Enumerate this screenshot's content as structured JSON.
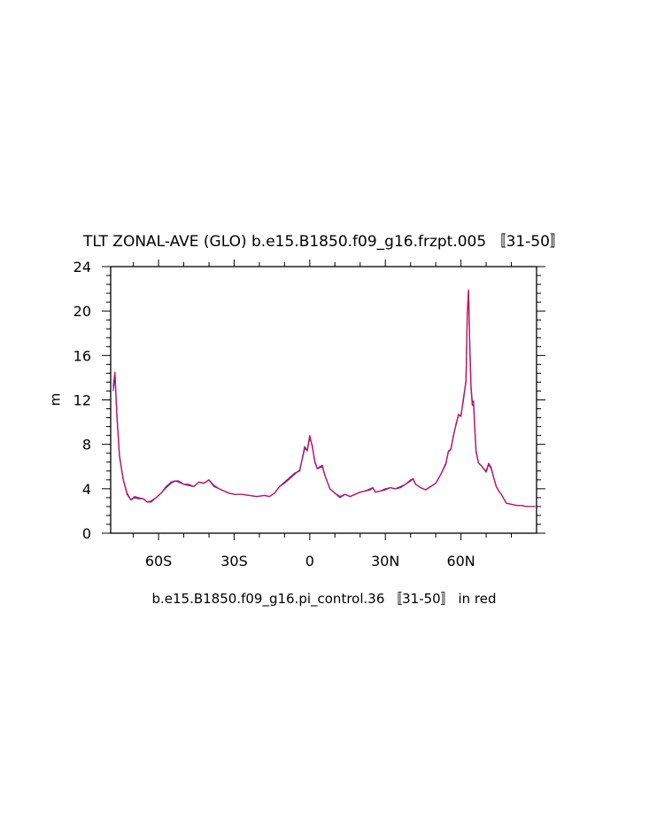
{
  "chart_data": {
    "type": "line",
    "title": "TLT ZONAL-AVE (GLO) b.e15.B1850.f09_g16.frzpt.005 〚31-50〛",
    "subtitle": "b.e15.B1850.f09_g16.pi_control.36 〚31-50〛 in red",
    "xlabel": "",
    "ylabel": "m",
    "xlim": [
      -79,
      90
    ],
    "ylim": [
      0,
      24
    ],
    "x_ticks": [
      {
        "value": -60,
        "label": "60S"
      },
      {
        "value": -30,
        "label": "30S"
      },
      {
        "value": 0,
        "label": "0"
      },
      {
        "value": 30,
        "label": "30N"
      },
      {
        "value": 60,
        "label": "60N"
      }
    ],
    "y_ticks": [
      {
        "value": 0,
        "label": "0"
      },
      {
        "value": 4,
        "label": "4"
      },
      {
        "value": 8,
        "label": "8"
      },
      {
        "value": 12,
        "label": "12"
      },
      {
        "value": 16,
        "label": "16"
      },
      {
        "value": 20,
        "label": "20"
      },
      {
        "value": 24,
        "label": "24"
      }
    ],
    "grid": false,
    "x": [
      -78,
      -77.3,
      -76.5,
      -75.5,
      -74,
      -72.5,
      -71,
      -69.5,
      -68,
      -66,
      -64.5,
      -63,
      -61,
      -59,
      -57,
      -55,
      -53.5,
      -52,
      -50,
      -48,
      -46,
      -44,
      -42,
      -40,
      -38,
      -36,
      -34,
      -32,
      -30,
      -27,
      -24,
      -21,
      -18,
      -16,
      -14,
      -12,
      -10,
      -8,
      -6,
      -4,
      -2,
      -1,
      0,
      1,
      2,
      3,
      4,
      5,
      6,
      7,
      8,
      10,
      12,
      14,
      16,
      18,
      20,
      22,
      24,
      25,
      26,
      28,
      30,
      32,
      34,
      36,
      38,
      40,
      41,
      42,
      44,
      46,
      48,
      50,
      52,
      54,
      55,
      56,
      57,
      58,
      59,
      60,
      61,
      62,
      62.5,
      63,
      63.5,
      64,
      64.5,
      65,
      65.5,
      66,
      67,
      68,
      69,
      70,
      71,
      72,
      73,
      74,
      75,
      76,
      78,
      80,
      82,
      84,
      86,
      88,
      89.5
    ],
    "series": [
      {
        "name": "b.e15.B1850.f09_g16.frzpt.005",
        "color": "#3333cc",
        "values": [
          12.8,
          14.2,
          10.5,
          7.0,
          4.8,
          3.6,
          3.0,
          3.2,
          3.1,
          3.1,
          2.8,
          2.9,
          3.2,
          3.6,
          4.2,
          4.6,
          4.7,
          4.7,
          4.4,
          4.3,
          4.2,
          4.6,
          4.5,
          4.8,
          4.2,
          4.0,
          3.8,
          3.6,
          3.5,
          3.5,
          3.4,
          3.3,
          3.4,
          3.3,
          3.6,
          4.2,
          4.6,
          5.0,
          5.4,
          5.6,
          7.8,
          7.4,
          8.6,
          7.9,
          6.4,
          5.8,
          5.9,
          6.0,
          5.2,
          4.6,
          4.0,
          3.6,
          3.3,
          3.5,
          3.3,
          3.5,
          3.7,
          3.8,
          3.9,
          4.1,
          3.7,
          3.8,
          3.9,
          4.1,
          4.0,
          4.1,
          4.4,
          4.7,
          4.9,
          4.4,
          4.1,
          3.9,
          4.2,
          4.5,
          5.3,
          6.3,
          7.3,
          7.6,
          8.7,
          9.8,
          10.6,
          10.6,
          12.0,
          13.8,
          19.5,
          21.8,
          17.0,
          13.2,
          11.8,
          11.9,
          9.5,
          7.4,
          6.3,
          6.1,
          5.8,
          5.5,
          6.2,
          5.8,
          5.0,
          4.2,
          3.8,
          3.5,
          2.7,
          2.6,
          2.5,
          2.5,
          2.4,
          2.4,
          2.4
        ]
      },
      {
        "name": "b.e15.B1850.f09_g16.pi_control.36",
        "color": "#cc1155",
        "values": [
          13.2,
          14.5,
          10.4,
          6.9,
          4.8,
          3.5,
          3.0,
          3.3,
          3.2,
          3.1,
          2.8,
          2.8,
          3.2,
          3.6,
          4.1,
          4.5,
          4.7,
          4.6,
          4.4,
          4.4,
          4.2,
          4.6,
          4.5,
          4.8,
          4.3,
          4.0,
          3.8,
          3.6,
          3.5,
          3.5,
          3.4,
          3.3,
          3.4,
          3.3,
          3.6,
          4.2,
          4.5,
          4.9,
          5.3,
          5.7,
          7.6,
          7.5,
          8.8,
          7.8,
          6.5,
          5.8,
          6.0,
          6.1,
          5.2,
          4.6,
          4.0,
          3.6,
          3.2,
          3.5,
          3.3,
          3.5,
          3.7,
          3.8,
          4.0,
          4.1,
          3.7,
          3.8,
          4.0,
          4.1,
          4.0,
          4.2,
          4.4,
          4.8,
          4.9,
          4.4,
          4.1,
          3.9,
          4.2,
          4.5,
          5.3,
          6.2,
          7.4,
          7.5,
          8.8,
          9.7,
          10.7,
          10.5,
          12.2,
          13.6,
          19.8,
          21.9,
          16.8,
          13.0,
          11.5,
          11.6,
          9.3,
          7.3,
          6.3,
          6.1,
          5.8,
          5.6,
          6.3,
          5.9,
          5.0,
          4.2,
          3.8,
          3.5,
          2.7,
          2.6,
          2.5,
          2.5,
          2.4,
          2.4,
          2.4
        ]
      }
    ]
  }
}
